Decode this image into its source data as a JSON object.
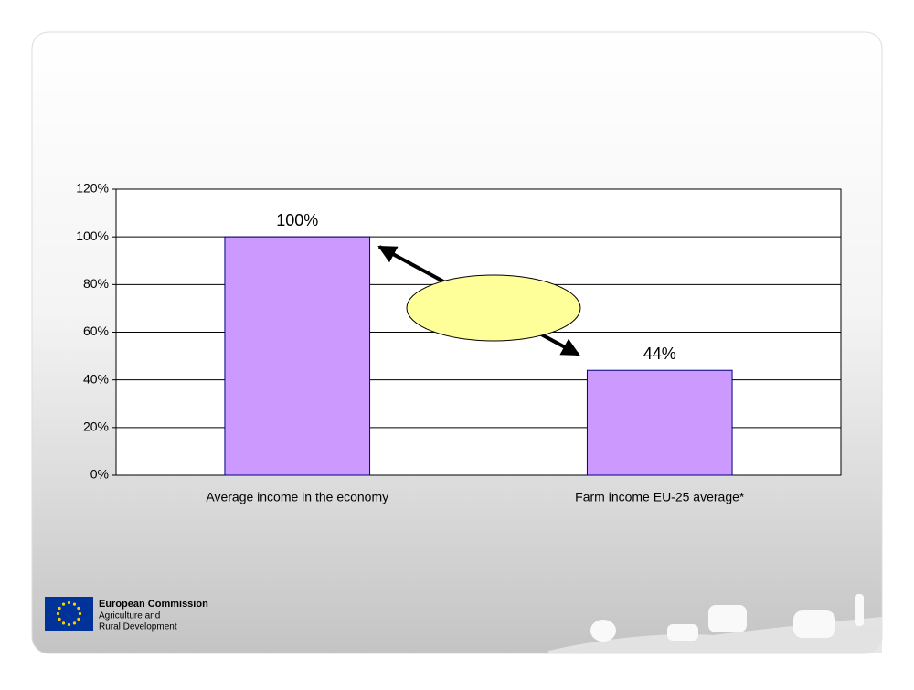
{
  "chart_data": {
    "type": "bar",
    "categories": [
      "Average income in the economy",
      "Farm income EU-25 average*"
    ],
    "values": [
      100,
      44
    ],
    "value_labels": [
      "100%",
      "44%"
    ],
    "color": "#cc99ff",
    "ylim": [
      0,
      120
    ],
    "yticks": [
      {
        "value": 0,
        "label": "0%"
      },
      {
        "value": 20,
        "label": "20%"
      },
      {
        "value": 40,
        "label": "40%"
      },
      {
        "value": 60,
        "label": "60%"
      },
      {
        "value": 80,
        "label": "80%"
      },
      {
        "value": 100,
        "label": "100%"
      },
      {
        "value": 120,
        "label": "120%"
      }
    ],
    "grid": true
  },
  "footer": {
    "organization": "European Commission",
    "department_line1": "Agriculture and",
    "department_line2": "Rural Development"
  }
}
